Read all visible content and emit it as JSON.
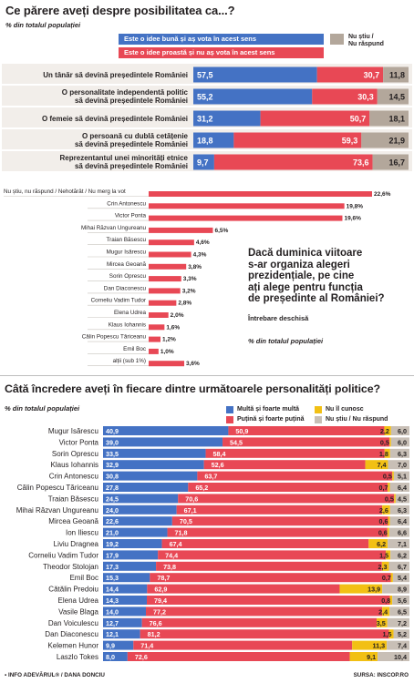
{
  "section1": {
    "title": "Ce părere aveți despre posibilitatea ca...?",
    "subtitle": "% din totalul populației",
    "legend": {
      "good": "Este o idee bună și aș vota în acest sens",
      "bad": "Este o idee proastă și nu aș vota în acest sens",
      "dk_line1": "Nu știu /",
      "dk_line2": "Nu răspund"
    },
    "colors": {
      "good": "#4472c4",
      "bad": "#e84855",
      "dk": "#b3a79b"
    }
  },
  "section2": {
    "question_line1": "Dacă duminica viitoare",
    "question_line2": "s-ar organiza alegeri",
    "question_line3": "prezidențiale, pe cine",
    "question_line4": "ați alege pentru funcția",
    "question_line5": "de președinte al României?",
    "note": "Întrebare deschisă",
    "subtitle": "% din totalul populației",
    "color": "#e84855"
  },
  "section3": {
    "title": "Câtă încredere aveți în fiecare dintre următoarele personalități politice?",
    "subtitle": "% din totalul populației",
    "legend": {
      "much": "Multă și foarte multă",
      "little": "Puțină și foarte puțină",
      "dontknow": "Nu îl cunosc",
      "dk": "Nu știu / Nu răspund"
    },
    "colors": {
      "much": "#4472c4",
      "little": "#e84855",
      "dontknow": "#f2c014",
      "dk": "#c8bfb6"
    }
  },
  "footer": {
    "left": "INFO ADEVĂRUL® / DANA DONCIU",
    "right": "SURSA: INSCOP.RO"
  },
  "chart_data": [
    {
      "type": "bar",
      "orientation": "horizontal-stacked",
      "categories": [
        [
          "Un tânăr să devină președintele României"
        ],
        [
          "O personalitate independentă politic",
          "să devină președintele României"
        ],
        [
          "O femeie să devină președintele României"
        ],
        [
          "O persoană cu dublă cetățenie",
          "să devină președintele României"
        ],
        [
          "Reprezentantul unei minorități etnice",
          "să devină președintele României"
        ]
      ],
      "series": [
        {
          "name": "Este o idee bună și aș vota în acest sens",
          "values": [
            57.5,
            55.2,
            31.2,
            18.8,
            9.7
          ]
        },
        {
          "name": "Este o idee proastă și nu aș vota în acest sens",
          "values": [
            30.7,
            30.3,
            50.7,
            59.3,
            73.6
          ]
        },
        {
          "name": "Nu știu / Nu răspund",
          "values": [
            11.8,
            14.5,
            18.1,
            21.9,
            16.7
          ]
        }
      ]
    },
    {
      "type": "bar",
      "orientation": "horizontal",
      "categories": [
        "Nu știu, nu răspund / Nehotărât / Nu merg la vot",
        "Crin Antonescu",
        "Victor Ponta",
        "Mihai Răzvan Ungureanu",
        "Traian Băsescu",
        "Mugur Isărescu",
        "Mircea Geoană",
        "Sorin Oprescu",
        "Dan Diaconescu",
        "Corneliu Vadim Tudor",
        "Elena Udrea",
        "Klaus Iohannis",
        "Călin Popescu Tăriceanu",
        "Emil Boc",
        "alții (sub 1%)"
      ],
      "values": [
        22.6,
        19.8,
        19.6,
        6.5,
        4.6,
        4.3,
        3.8,
        3.3,
        3.2,
        2.8,
        2.0,
        1.6,
        1.2,
        1.0,
        3.6
      ],
      "labels": [
        "22,6%",
        "19,8%",
        "19,6%",
        "6,5%",
        "4,6%",
        "4,3%",
        "3,8%",
        "3,3%",
        "3,2%",
        "2,8%",
        "2,0%",
        "1,6%",
        "1,2%",
        "1,0%",
        "3,6%"
      ]
    },
    {
      "type": "bar",
      "orientation": "horizontal-stacked",
      "categories": [
        "Mugur Isărescu",
        "Victor Ponta",
        "Sorin Oprescu",
        "Klaus Iohannis",
        "Crin Antonescu",
        "Călin Popescu Tăriceanu",
        "Traian Băsescu",
        "Mihai Răzvan Ungureanu",
        "Mircea Geoană",
        "Ion Iliescu",
        "Liviu Dragnea",
        "Corneliu Vadim Tudor",
        "Theodor Stolojan",
        "Emil Boc",
        "Cătălin Predoiu",
        "Elena Udrea",
        "Vasile Blaga",
        "Dan Voiculescu",
        "Dan Diaconescu",
        "Kelemen Hunor",
        "Laszlo Tokes"
      ],
      "series": [
        {
          "name": "Multă și foarte multă",
          "values": [
            40.9,
            39.0,
            33.5,
            32.9,
            30.8,
            27.8,
            24.5,
            24.0,
            22.6,
            21.0,
            19.2,
            17.9,
            17.3,
            15.3,
            14.4,
            14.3,
            14.0,
            12.7,
            12.1,
            9.9,
            8.0
          ]
        },
        {
          "name": "Puțină și foarte puțină",
          "values": [
            50.9,
            54.5,
            58.4,
            52.6,
            63.7,
            65.2,
            70.6,
            67.1,
            70.5,
            71.8,
            67.4,
            74.4,
            73.8,
            78.7,
            62.9,
            79.4,
            77.2,
            76.6,
            81.2,
            71.4,
            72.6
          ]
        },
        {
          "name": "Nu îl cunosc",
          "values": [
            2.2,
            0.5,
            1.8,
            7.4,
            0.5,
            0.7,
            0.5,
            2.6,
            0.6,
            0.6,
            6.2,
            1.5,
            2.3,
            0.7,
            13.9,
            0.8,
            2.4,
            3.5,
            1.5,
            11.3,
            9.1
          ]
        },
        {
          "name": "Nu știu / Nu răspund",
          "values": [
            6.0,
            6.0,
            6.3,
            7.0,
            5.1,
            6.4,
            4.5,
            6.3,
            6.4,
            6.6,
            7.1,
            6.2,
            6.7,
            5.4,
            8.9,
            5.6,
            6.5,
            7.2,
            5.2,
            7.4,
            10.4
          ]
        },
        {
          "name": "labels_much",
          "values": [
            "40,9",
            "39,0",
            "33,5",
            "32,9",
            "30,8",
            "27,8",
            "24,5",
            "24,0",
            "22,6",
            "21,0",
            "19,2",
            "17,9",
            "17,3",
            "15,3",
            "14,4",
            "14,3",
            "14,0",
            "12,7",
            "12,1",
            "9,9",
            "8,0"
          ]
        },
        {
          "name": "labels_little",
          "values": [
            "50,9",
            "54,5",
            "58,4",
            "52,6",
            "63,7",
            "65,2",
            "70,6",
            "67,1",
            "70,5",
            "71,8",
            "67,4",
            "74,4",
            "73,8",
            "78,7",
            "62,9",
            "79,4",
            "77,2",
            "76,6",
            "81,2",
            "71,4",
            "72,6"
          ]
        },
        {
          "name": "labels_dontknow",
          "values": [
            "2,2",
            "0,5",
            "1,8",
            "7,4",
            "0,5",
            "0,7",
            "0,5",
            "2,6",
            "0,6",
            "0,6",
            "6,2",
            "1,5",
            "2,3",
            "0,7",
            "13,9",
            "0,8",
            "2,4",
            "3,5",
            "1,5",
            "11,3",
            "9,1"
          ]
        },
        {
          "name": "labels_dk",
          "values": [
            "6,0",
            "6,0",
            "6,3",
            "7,0",
            "5,1",
            "6,4",
            "4,5",
            "6,3",
            "6,4",
            "6,6",
            "7,1",
            "6,2",
            "6,7",
            "5,4",
            "8,9",
            "5,6",
            "6,5",
            "7,2",
            "5,2",
            "7,4",
            "10,4"
          ]
        }
      ]
    }
  ]
}
